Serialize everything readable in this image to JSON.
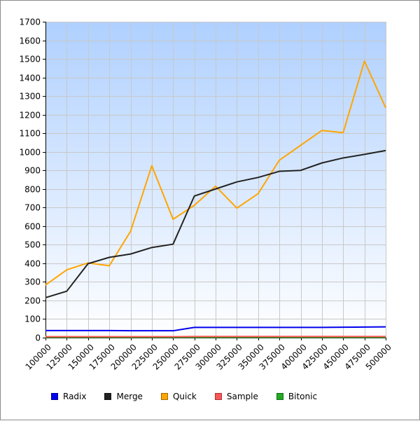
{
  "chart_data": {
    "type": "line",
    "title": "",
    "xlabel": "",
    "ylabel": "",
    "x": [
      100000,
      125000,
      150000,
      175000,
      200000,
      225000,
      250000,
      275000,
      300000,
      325000,
      350000,
      375000,
      400000,
      425000,
      450000,
      475000,
      500000
    ],
    "x_tick_labels": [
      "100000",
      "125000",
      "150000",
      "175000",
      "200000",
      "225000",
      "250000",
      "275000",
      "300000",
      "325000",
      "350000",
      "375000",
      "400000",
      "425000",
      "450000",
      "475000",
      "500000"
    ],
    "y_ticks": [
      0,
      100,
      200,
      300,
      400,
      500,
      600,
      700,
      800,
      900,
      1000,
      1100,
      1200,
      1300,
      1400,
      1500,
      1600,
      1700
    ],
    "y_tick_labels": [
      "0",
      "100",
      "200",
      "300",
      "400",
      "500",
      "600",
      "700",
      "800",
      "900",
      "1000",
      "1100",
      "1200",
      "1300",
      "1400",
      "1500",
      "1600",
      "1700"
    ],
    "xlim": [
      100000,
      500000
    ],
    "ylim": [
      0,
      1700
    ],
    "grid": true,
    "legend_position": "bottom",
    "background_gradient": [
      "#afd0ff",
      "#ffffff"
    ],
    "series": [
      {
        "name": "Radix",
        "color": "#0000ee",
        "values": [
          38,
          38,
          38,
          38,
          37,
          37,
          37,
          55,
          55,
          55,
          55,
          55,
          55,
          55,
          56,
          57,
          58
        ]
      },
      {
        "name": "Merge",
        "color": "#222222",
        "values": [
          215,
          250,
          398,
          432,
          450,
          485,
          503,
          762,
          800,
          838,
          862,
          895,
          900,
          940,
          967,
          986,
          1007
        ]
      },
      {
        "name": "Quick",
        "color": "#ffa500",
        "values": [
          283,
          365,
          402,
          387,
          572,
          925,
          637,
          712,
          815,
          697,
          775,
          955,
          1035,
          1115,
          1103,
          1488,
          1237
        ]
      },
      {
        "name": "Sample",
        "color": "#ff5555",
        "values": [
          5,
          5,
          5,
          5,
          5,
          5,
          5,
          6,
          6,
          6,
          6,
          6,
          6,
          6,
          6,
          6,
          6
        ]
      },
      {
        "name": "Bitonic",
        "color": "#22aa22",
        "values": [
          2,
          2,
          2,
          2,
          2,
          2,
          2,
          2,
          2,
          2,
          2,
          2,
          2,
          2,
          2,
          2,
          2
        ]
      }
    ]
  }
}
